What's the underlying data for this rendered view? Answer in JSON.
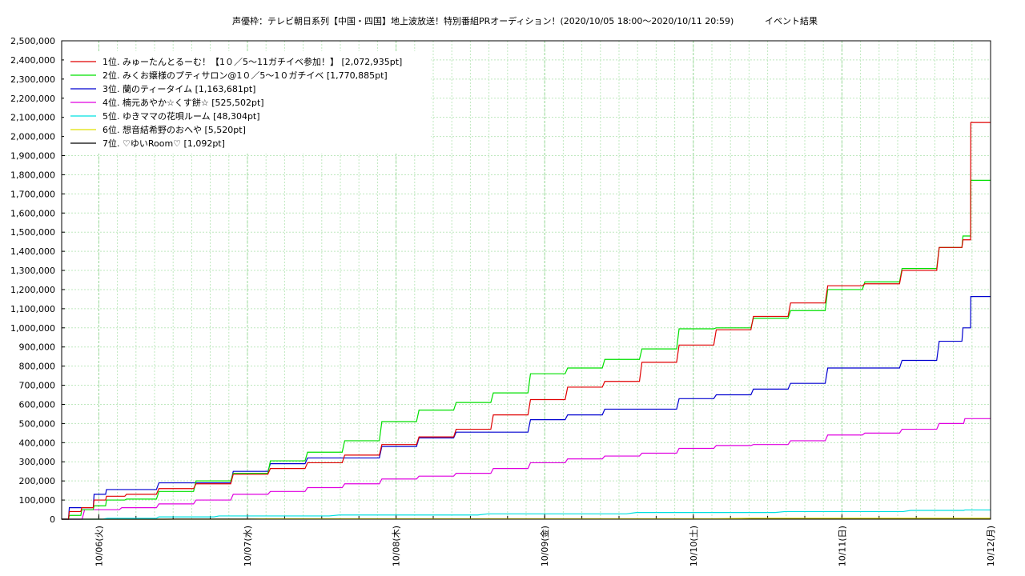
{
  "chart_data": {
    "type": "line",
    "title": "声優枠：テレビ朝日系列【中国・四国】地上波放送！特別番組PRオーディション！(2020/10/05 18:00〜2020/10/11 20:59)",
    "subtitle": "イベント結果",
    "xlabel": "",
    "ylabel": "",
    "xlim": [
      "2020-10-05 18:00",
      "2020-10-12 00:00"
    ],
    "ylim": [
      0,
      2500000
    ],
    "grid": true,
    "legend_position": "top-left",
    "x_ticks": [
      "10/06(火)",
      "10/07(水)",
      "10/08(木)",
      "10/09(金)",
      "10/10(土)",
      "10/11(日)",
      "10/12(月)"
    ],
    "y_ticks": [
      "0",
      "100,000",
      "200,000",
      "300,000",
      "400,000",
      "500,000",
      "600,000",
      "700,000",
      "800,000",
      "900,000",
      "1,000,000",
      "1,100,000",
      "1,200,000",
      "1,300,000",
      "1,400,000",
      "1,500,000",
      "1,600,000",
      "1,700,000",
      "1,800,000",
      "1,900,000",
      "2,000,000",
      "2,100,000",
      "2,200,000",
      "2,300,000",
      "2,400,000",
      "2,500,000"
    ],
    "series": [
      {
        "name": "1位. みゅーたんとるーむ！【1０／5〜11ガチイベ参加！】 [2,072,935pt]",
        "color": "#e00000",
        "points": [
          [
            "2020-10-05 18:00",
            0
          ],
          [
            "2020-10-05 20:00",
            40000
          ],
          [
            "2020-10-05 22:00",
            60000
          ],
          [
            "2020-10-06 00:00",
            100000
          ],
          [
            "2020-10-06 02:00",
            120000
          ],
          [
            "2020-10-06 06:00",
            130000
          ],
          [
            "2020-10-06 12:00",
            160000
          ],
          [
            "2020-10-06 18:00",
            185000
          ],
          [
            "2020-10-07 00:00",
            235000
          ],
          [
            "2020-10-07 06:00",
            265000
          ],
          [
            "2020-10-07 12:00",
            295000
          ],
          [
            "2020-10-07 18:00",
            335000
          ],
          [
            "2020-10-08 00:00",
            390000
          ],
          [
            "2020-10-08 06:00",
            430000
          ],
          [
            "2020-10-08 12:00",
            470000
          ],
          [
            "2020-10-08 18:00",
            545000
          ],
          [
            "2020-10-09 00:00",
            625000
          ],
          [
            "2020-10-09 06:00",
            690000
          ],
          [
            "2020-10-09 12:00",
            720000
          ],
          [
            "2020-10-09 18:00",
            820000
          ],
          [
            "2020-10-10 00:00",
            910000
          ],
          [
            "2020-10-10 06:00",
            990000
          ],
          [
            "2020-10-10 12:00",
            1060000
          ],
          [
            "2020-10-10 18:00",
            1130000
          ],
          [
            "2020-10-11 00:00",
            1220000
          ],
          [
            "2020-10-11 06:00",
            1230000
          ],
          [
            "2020-10-11 12:00",
            1300000
          ],
          [
            "2020-10-11 18:00",
            1420000
          ],
          [
            "2020-10-11 20:30",
            1460000
          ],
          [
            "2020-10-11 21:00",
            2072935
          ],
          [
            "2020-10-12 00:00",
            2072935
          ]
        ]
      },
      {
        "name": "2位. みくお嬢様のプティサロン@1０／5〜1０ガチイベ [1,770,885pt]",
        "color": "#00e000",
        "points": [
          [
            "2020-10-05 18:00",
            0
          ],
          [
            "2020-10-05 20:00",
            20000
          ],
          [
            "2020-10-05 22:00",
            50000
          ],
          [
            "2020-10-06 00:00",
            70000
          ],
          [
            "2020-10-06 02:00",
            100000
          ],
          [
            "2020-10-06 06:00",
            105000
          ],
          [
            "2020-10-06 12:00",
            145000
          ],
          [
            "2020-10-06 18:00",
            200000
          ],
          [
            "2020-10-07 00:00",
            240000
          ],
          [
            "2020-10-07 06:00",
            305000
          ],
          [
            "2020-10-07 12:00",
            350000
          ],
          [
            "2020-10-07 18:00",
            410000
          ],
          [
            "2020-10-08 00:00",
            510000
          ],
          [
            "2020-10-08 06:00",
            570000
          ],
          [
            "2020-10-08 12:00",
            610000
          ],
          [
            "2020-10-08 18:00",
            660000
          ],
          [
            "2020-10-09 00:00",
            760000
          ],
          [
            "2020-10-09 06:00",
            790000
          ],
          [
            "2020-10-09 12:00",
            835000
          ],
          [
            "2020-10-09 18:00",
            890000
          ],
          [
            "2020-10-10 00:00",
            995000
          ],
          [
            "2020-10-10 06:00",
            1000000
          ],
          [
            "2020-10-10 12:00",
            1050000
          ],
          [
            "2020-10-10 18:00",
            1090000
          ],
          [
            "2020-10-11 00:00",
            1200000
          ],
          [
            "2020-10-11 06:00",
            1240000
          ],
          [
            "2020-10-11 12:00",
            1310000
          ],
          [
            "2020-10-11 18:00",
            1420000
          ],
          [
            "2020-10-11 20:30",
            1480000
          ],
          [
            "2020-10-11 21:00",
            1770885
          ],
          [
            "2020-10-12 00:00",
            1770885
          ]
        ]
      },
      {
        "name": "3位. 蘭のティータイム [1,163,681pt]",
        "color": "#0000d0",
        "points": [
          [
            "2020-10-05 18:00",
            0
          ],
          [
            "2020-10-05 20:00",
            60000
          ],
          [
            "2020-10-05 22:00",
            60000
          ],
          [
            "2020-10-06 00:00",
            130000
          ],
          [
            "2020-10-06 02:00",
            155000
          ],
          [
            "2020-10-06 06:00",
            155000
          ],
          [
            "2020-10-06 12:00",
            190000
          ],
          [
            "2020-10-06 18:00",
            190000
          ],
          [
            "2020-10-07 00:00",
            250000
          ],
          [
            "2020-10-07 06:00",
            290000
          ],
          [
            "2020-10-07 12:00",
            320000
          ],
          [
            "2020-10-07 18:00",
            320000
          ],
          [
            "2020-10-08 00:00",
            380000
          ],
          [
            "2020-10-08 06:00",
            425000
          ],
          [
            "2020-10-08 12:00",
            455000
          ],
          [
            "2020-10-08 18:00",
            455000
          ],
          [
            "2020-10-09 00:00",
            520000
          ],
          [
            "2020-10-09 06:00",
            545000
          ],
          [
            "2020-10-09 12:00",
            575000
          ],
          [
            "2020-10-09 18:00",
            575000
          ],
          [
            "2020-10-10 00:00",
            630000
          ],
          [
            "2020-10-10 06:00",
            650000
          ],
          [
            "2020-10-10 12:00",
            680000
          ],
          [
            "2020-10-10 18:00",
            710000
          ],
          [
            "2020-10-11 00:00",
            790000
          ],
          [
            "2020-10-11 06:00",
            790000
          ],
          [
            "2020-10-11 12:00",
            830000
          ],
          [
            "2020-10-11 18:00",
            930000
          ],
          [
            "2020-10-11 20:30",
            1000000
          ],
          [
            "2020-10-11 21:00",
            1163681
          ],
          [
            "2020-10-12 00:00",
            1163681
          ]
        ]
      },
      {
        "name": "4位. 楠元あやか☆くす餅☆ [525,502pt]",
        "color": "#e000e0",
        "points": [
          [
            "2020-10-05 18:00",
            0
          ],
          [
            "2020-10-06 00:00",
            50000
          ],
          [
            "2020-10-06 06:00",
            60000
          ],
          [
            "2020-10-06 12:00",
            80000
          ],
          [
            "2020-10-06 18:00",
            100000
          ],
          [
            "2020-10-07 00:00",
            130000
          ],
          [
            "2020-10-07 06:00",
            145000
          ],
          [
            "2020-10-07 12:00",
            165000
          ],
          [
            "2020-10-07 18:00",
            185000
          ],
          [
            "2020-10-08 00:00",
            210000
          ],
          [
            "2020-10-08 06:00",
            225000
          ],
          [
            "2020-10-08 12:00",
            240000
          ],
          [
            "2020-10-08 18:00",
            265000
          ],
          [
            "2020-10-09 00:00",
            295000
          ],
          [
            "2020-10-09 06:00",
            315000
          ],
          [
            "2020-10-09 12:00",
            330000
          ],
          [
            "2020-10-09 18:00",
            345000
          ],
          [
            "2020-10-10 00:00",
            370000
          ],
          [
            "2020-10-10 06:00",
            385000
          ],
          [
            "2020-10-10 12:00",
            390000
          ],
          [
            "2020-10-10 18:00",
            410000
          ],
          [
            "2020-10-11 00:00",
            440000
          ],
          [
            "2020-10-11 06:00",
            450000
          ],
          [
            "2020-10-11 12:00",
            470000
          ],
          [
            "2020-10-11 18:00",
            500000
          ],
          [
            "2020-10-11 21:00",
            525502
          ],
          [
            "2020-10-12 00:00",
            525502
          ]
        ]
      },
      {
        "name": "5位. ゆきママの花唄ルーム [48,304pt]",
        "color": "#00e0e0",
        "points": [
          [
            "2020-10-05 18:00",
            0
          ],
          [
            "2020-10-06 06:00",
            5000
          ],
          [
            "2020-10-06 12:00",
            12000
          ],
          [
            "2020-10-07 00:00",
            17000
          ],
          [
            "2020-10-08 00:00",
            22000
          ],
          [
            "2020-10-09 00:00",
            28000
          ],
          [
            "2020-10-10 00:00",
            35000
          ],
          [
            "2020-10-11 00:00",
            40000
          ],
          [
            "2020-10-11 18:00",
            46000
          ],
          [
            "2020-10-11 21:00",
            48304
          ],
          [
            "2020-10-12 00:00",
            48304
          ]
        ]
      },
      {
        "name": "6位. 想音結希野のおへや [5,520pt]",
        "color": "#e0e000",
        "points": [
          [
            "2020-10-05 18:00",
            0
          ],
          [
            "2020-10-08 00:00",
            2000
          ],
          [
            "2020-10-11 21:00",
            5520
          ],
          [
            "2020-10-12 00:00",
            5520
          ]
        ]
      },
      {
        "name": "7位. ♡ゆいRoom♡ [1,092pt]",
        "color": "#000000",
        "points": [
          [
            "2020-10-05 18:00",
            0
          ],
          [
            "2020-10-07 00:00",
            500
          ],
          [
            "2020-10-11 21:00",
            1092
          ],
          [
            "2020-10-12 00:00",
            1092
          ]
        ]
      }
    ]
  }
}
